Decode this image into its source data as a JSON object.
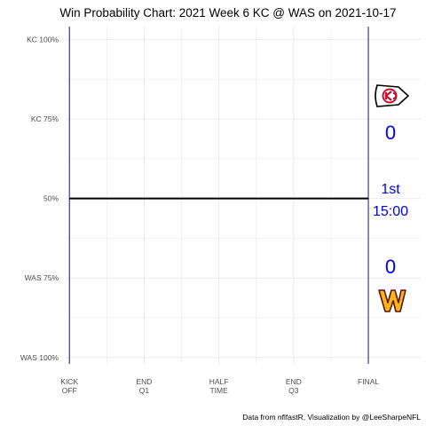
{
  "chart_data": {
    "type": "line",
    "title": "Win Probability Chart: 2021 Week 6 KC @ WAS on 2021-10-17",
    "caption": "Data from nflfastR, Visualization by @LeeSharpeNFL",
    "y_ticks": [
      {
        "value": 100,
        "label": "KC 100%"
      },
      {
        "value": 75,
        "label": "KC 75%"
      },
      {
        "value": 50,
        "label": "50%"
      },
      {
        "value": 25,
        "label": "WAS 75%"
      },
      {
        "value": 0,
        "label": "WAS 100%"
      }
    ],
    "x_ticks": [
      {
        "value": 0,
        "lines": [
          "KICK",
          "OFF"
        ]
      },
      {
        "value": 1,
        "lines": [
          "END",
          "Q1"
        ]
      },
      {
        "value": 2,
        "lines": [
          "HALF",
          "TIME"
        ]
      },
      {
        "value": 3,
        "lines": [
          "END",
          "Q3"
        ]
      },
      {
        "value": 4,
        "lines": [
          "FINAL"
        ]
      }
    ],
    "xlim": [
      -0.05,
      4.7
    ],
    "ylim": [
      -2,
      104
    ],
    "series": [
      {
        "values": [
          {
            "x": 0,
            "y": 50
          },
          {
            "x": 4,
            "y": 50
          }
        ]
      }
    ],
    "grid": true,
    "scoreboard": {
      "home_team_score": "0",
      "away_team_score": "0",
      "quarter": "1st",
      "clock": "15:00",
      "text_color": "#0000ee"
    },
    "team_logos": {
      "top": "chiefs-arrowhead-logo",
      "bottom": "commanders-w-logo"
    },
    "colors": {
      "line": "#000000",
      "vertical_markers": "#1a1a66",
      "grid": "#ebebeb"
    }
  }
}
